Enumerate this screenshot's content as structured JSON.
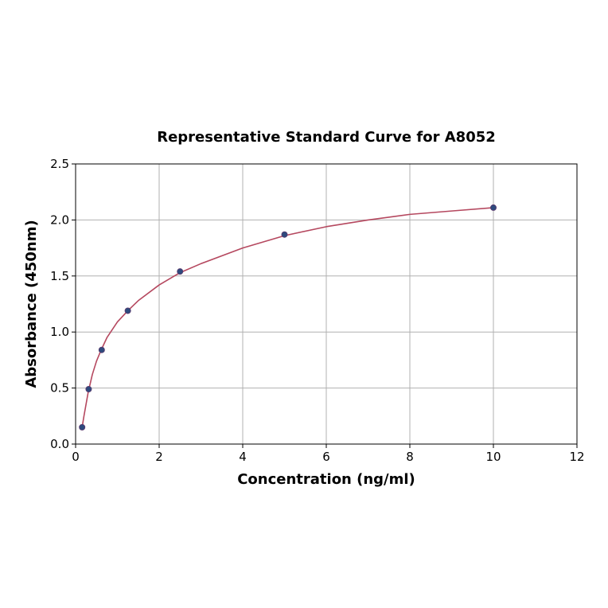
{
  "chart_data": {
    "type": "scatter",
    "title": "Representative Standard Curve for A8052",
    "xlabel": "Concentration (ng/ml)",
    "ylabel": "Absorbance (450nm)",
    "xlim": [
      0,
      12
    ],
    "ylim": [
      0,
      2.5
    ],
    "x_ticks": [
      0,
      2,
      4,
      6,
      8,
      10,
      12
    ],
    "y_ticks": [
      0.0,
      0.5,
      1.0,
      1.5,
      2.0,
      2.5
    ],
    "x_tick_labels": [
      "0",
      "2",
      "4",
      "6",
      "8",
      "10",
      "12"
    ],
    "y_tick_labels": [
      "0.0",
      "0.5",
      "1.0",
      "1.5",
      "2.0",
      "2.5"
    ],
    "grid": true,
    "series": [
      {
        "x": [
          0.156,
          0.313,
          0.625,
          1.25,
          2.5,
          5,
          10
        ],
        "y": [
          0.15,
          0.49,
          0.84,
          1.19,
          1.54,
          1.87,
          2.11
        ],
        "marker_color": "#2e4a7d"
      }
    ],
    "fit_curve": {
      "x": [
        0.156,
        0.2,
        0.3,
        0.4,
        0.5,
        0.6,
        0.75,
        1.0,
        1.25,
        1.5,
        2.0,
        2.5,
        3.0,
        4.0,
        5.0,
        6.0,
        7.0,
        8.0,
        9.0,
        10.0
      ],
      "y": [
        0.15,
        0.25,
        0.46,
        0.62,
        0.74,
        0.83,
        0.95,
        1.09,
        1.19,
        1.28,
        1.42,
        1.53,
        1.61,
        1.75,
        1.86,
        1.94,
        2.0,
        2.05,
        2.08,
        2.11
      ],
      "color": "#b5485f"
    }
  }
}
